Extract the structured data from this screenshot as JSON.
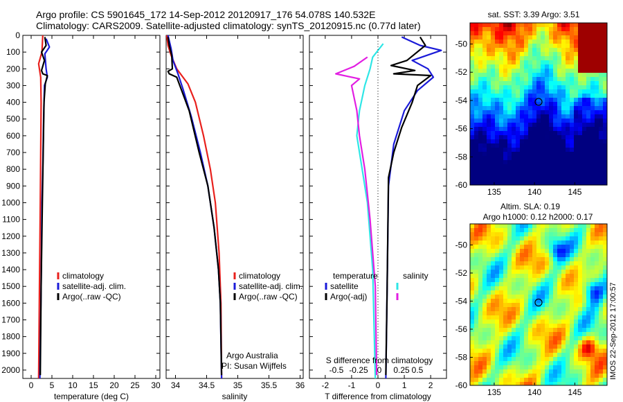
{
  "title_line1": "Argo profile: CS 5901645_172 14-Sep-2012 20120917_176 54.078S 140.532E",
  "title_line2": "Climatology: CARS2009. Satellite-adjusted climatology: synTS_20120915.nc (0.77d later)",
  "timestamp": "IMOS 22-Sep-2012 17:00:57",
  "colors": {
    "climatology": "#e8201c",
    "satellite": "#1a1ad8",
    "argo": "#000000",
    "salinity_sat": "#2ee6e6",
    "salinity_argo": "#e21ee2"
  },
  "chart_data": [
    {
      "type": "line",
      "name": "temperature-profile",
      "xlabel": "temperature (deg C)",
      "ylabel": "",
      "xlim": [
        -2,
        31
      ],
      "ylim": [
        2050,
        0
      ],
      "xticks": [
        0,
        5,
        10,
        15,
        20,
        25,
        30
      ],
      "yticks": [
        0,
        100,
        200,
        300,
        400,
        500,
        600,
        700,
        800,
        900,
        1000,
        1100,
        1200,
        1300,
        1400,
        1500,
        1600,
        1700,
        1800,
        1900,
        2000
      ],
      "legend": [
        "climatology",
        "satellite-adj. clim.",
        "Argo(..raw -QC)"
      ],
      "series": [
        {
          "name": "climatology",
          "color": "#e8201c",
          "points": [
            [
              2.8,
              0
            ],
            [
              2.6,
              100
            ],
            [
              1.8,
              170
            ],
            [
              2.3,
              250
            ],
            [
              2.4,
              400
            ],
            [
              2.3,
              700
            ],
            [
              2.2,
              1000
            ],
            [
              2.0,
              1500
            ],
            [
              1.8,
              2050
            ]
          ]
        },
        {
          "name": "satellite-adj. clim.",
          "color": "#1a1ad8",
          "points": [
            [
              3.6,
              20
            ],
            [
              4.4,
              70
            ],
            [
              3.3,
              110
            ],
            [
              3.6,
              200
            ],
            [
              3.9,
              250
            ],
            [
              3.2,
              300
            ],
            [
              3.0,
              500
            ],
            [
              2.8,
              800
            ],
            [
              2.6,
              1000
            ],
            [
              2.4,
              1500
            ],
            [
              2.1,
              2050
            ]
          ]
        },
        {
          "name": "Argo(..raw -QC)",
          "color": "#000000",
          "points": [
            [
              3.3,
              10
            ],
            [
              3.6,
              60
            ],
            [
              2.5,
              100
            ],
            [
              3.2,
              150
            ],
            [
              2.5,
              210
            ],
            [
              2.8,
              230
            ],
            [
              3.9,
              240
            ],
            [
              3.4,
              290
            ],
            [
              3.1,
              400
            ],
            [
              2.9,
              700
            ],
            [
              2.7,
              1000
            ],
            [
              2.4,
              1500
            ],
            [
              2.2,
              2030
            ]
          ]
        }
      ]
    },
    {
      "type": "line",
      "name": "salinity-profile",
      "xlabel": "salinity",
      "xlim": [
        33.85,
        36.05
      ],
      "ylim": [
        2050,
        0
      ],
      "xticks": [
        34,
        34.5,
        35,
        35.5,
        36
      ],
      "legend": [
        "climatology",
        "satellite-adj. clim.",
        "Argo(..raw -QC)"
      ],
      "annotation": [
        "Argo Australia",
        "PI: Susan Wijffels"
      ],
      "series": [
        {
          "name": "climatology",
          "color": "#e8201c",
          "points": [
            [
              33.86,
              0
            ],
            [
              33.88,
              60
            ],
            [
              33.93,
              120
            ],
            [
              34.02,
              200
            ],
            [
              34.2,
              290
            ],
            [
              34.32,
              400
            ],
            [
              34.45,
              600
            ],
            [
              34.56,
              800
            ],
            [
              34.64,
              1000
            ],
            [
              34.7,
              1300
            ],
            [
              34.73,
              1600
            ],
            [
              34.74,
              2050
            ]
          ]
        },
        {
          "name": "satellite-adj. clim.",
          "color": "#1a1ad8",
          "points": [
            [
              33.88,
              0
            ],
            [
              33.93,
              80
            ],
            [
              33.96,
              150
            ],
            [
              34.04,
              230
            ],
            [
              34.12,
              320
            ],
            [
              34.25,
              480
            ],
            [
              34.4,
              700
            ],
            [
              34.52,
              900
            ],
            [
              34.62,
              1150
            ],
            [
              34.69,
              1400
            ],
            [
              34.72,
              1600
            ],
            [
              34.74,
              2050
            ]
          ]
        },
        {
          "name": "Argo(..raw -QC)",
          "color": "#000000",
          "points": [
            [
              33.88,
              10
            ],
            [
              33.9,
              60
            ],
            [
              33.94,
              120
            ],
            [
              33.95,
              200
            ],
            [
              33.88,
              215
            ],
            [
              33.9,
              230
            ],
            [
              34.02,
              250
            ],
            [
              34.1,
              330
            ],
            [
              34.22,
              450
            ],
            [
              34.38,
              700
            ],
            [
              34.52,
              900
            ],
            [
              34.62,
              1150
            ],
            [
              34.69,
              1400
            ],
            [
              34.72,
              1600
            ],
            [
              34.74,
              2030
            ]
          ]
        }
      ]
    },
    {
      "type": "line",
      "name": "difference-profile",
      "xlabel": "T difference from climatology",
      "xlabel_top": "S difference from climatology",
      "xlim": [
        -2.6,
        2.6
      ],
      "ylim": [
        2050,
        0
      ],
      "xticks": [
        -2,
        -1,
        0,
        1,
        2
      ],
      "secondary_xticks": [
        "-0.5",
        "-0.25",
        "0",
        "0.25",
        "0.5"
      ],
      "legend_temperature_title": "temperature",
      "legend_salinity_title": "salinity",
      "legend": [
        "satellite",
        "Argo(-adj)",
        "satellite",
        "Argo(-adj)"
      ],
      "series": [
        {
          "name": "satellite",
          "color": "#1a1ad8",
          "points": [
            [
              0.9,
              10
            ],
            [
              1.6,
              60
            ],
            [
              2.4,
              90
            ],
            [
              1.3,
              150
            ],
            [
              1.9,
              200
            ],
            [
              2.1,
              250
            ],
            [
              1.5,
              330
            ],
            [
              1.0,
              450
            ],
            [
              0.6,
              650
            ],
            [
              0.4,
              900
            ],
            [
              0.35,
              1500
            ],
            [
              0.3,
              2050
            ]
          ]
        },
        {
          "name": "Argo(-adj)",
          "color": "#000000",
          "points": [
            [
              1.6,
              10
            ],
            [
              1.8,
              60
            ],
            [
              1.1,
              150
            ],
            [
              0.5,
              180
            ],
            [
              1.4,
              210
            ],
            [
              0.6,
              230
            ],
            [
              2.0,
              240
            ],
            [
              1.5,
              300
            ],
            [
              1.3,
              400
            ],
            [
              0.9,
              550
            ],
            [
              0.6,
              700
            ],
            [
              0.4,
              850
            ],
            [
              0.35,
              1500
            ],
            [
              0.3,
              2030
            ]
          ]
        },
        {
          "name": "satellite",
          "color": "#2ee6e6",
          "points": [
            [
              0.2,
              50
            ],
            [
              -0.2,
              130
            ],
            [
              -0.3,
              200
            ],
            [
              -0.5,
              300
            ],
            [
              -0.7,
              450
            ],
            [
              -0.8,
              600
            ],
            [
              -0.6,
              800
            ],
            [
              -0.4,
              1000
            ],
            [
              -0.2,
              1400
            ],
            [
              -0.1,
              2050
            ]
          ]
        },
        {
          "name": "Argo(-adj)",
          "color": "#e21ee2",
          "points": [
            [
              -0.4,
              130
            ],
            [
              -0.9,
              185
            ],
            [
              -1.6,
              230
            ],
            [
              -0.7,
              260
            ],
            [
              -1.0,
              300
            ],
            [
              -0.8,
              450
            ],
            [
              -0.7,
              600
            ],
            [
              -0.5,
              800
            ],
            [
              -0.3,
              1100
            ],
            [
              -0.1,
              1500
            ],
            [
              -0.05,
              2030
            ]
          ]
        }
      ]
    },
    {
      "type": "heatmap",
      "name": "satellite-sst-map",
      "title": "sat. SST: 3.39  Argo: 3.51",
      "xlim": [
        132,
        149
      ],
      "ylim": [
        -60,
        -48.5
      ],
      "xticks": [
        135,
        140,
        145
      ],
      "yticks": [
        -50,
        -52,
        -54,
        -56,
        -58,
        -60
      ],
      "marker": [
        140.5,
        -54.1
      ]
    },
    {
      "type": "heatmap",
      "name": "altimetry-sla-map",
      "title": "Altim. SLA: 0.19",
      "subtitle": "Argo h1000: 0.12  h2000: 0.17",
      "xlim": [
        132,
        149
      ],
      "ylim": [
        -60,
        -48.5
      ],
      "xticks": [
        135,
        140,
        145
      ],
      "yticks": [
        -50,
        -52,
        -54,
        -56,
        -58,
        -60
      ],
      "marker": [
        140.5,
        -54.1
      ]
    }
  ]
}
